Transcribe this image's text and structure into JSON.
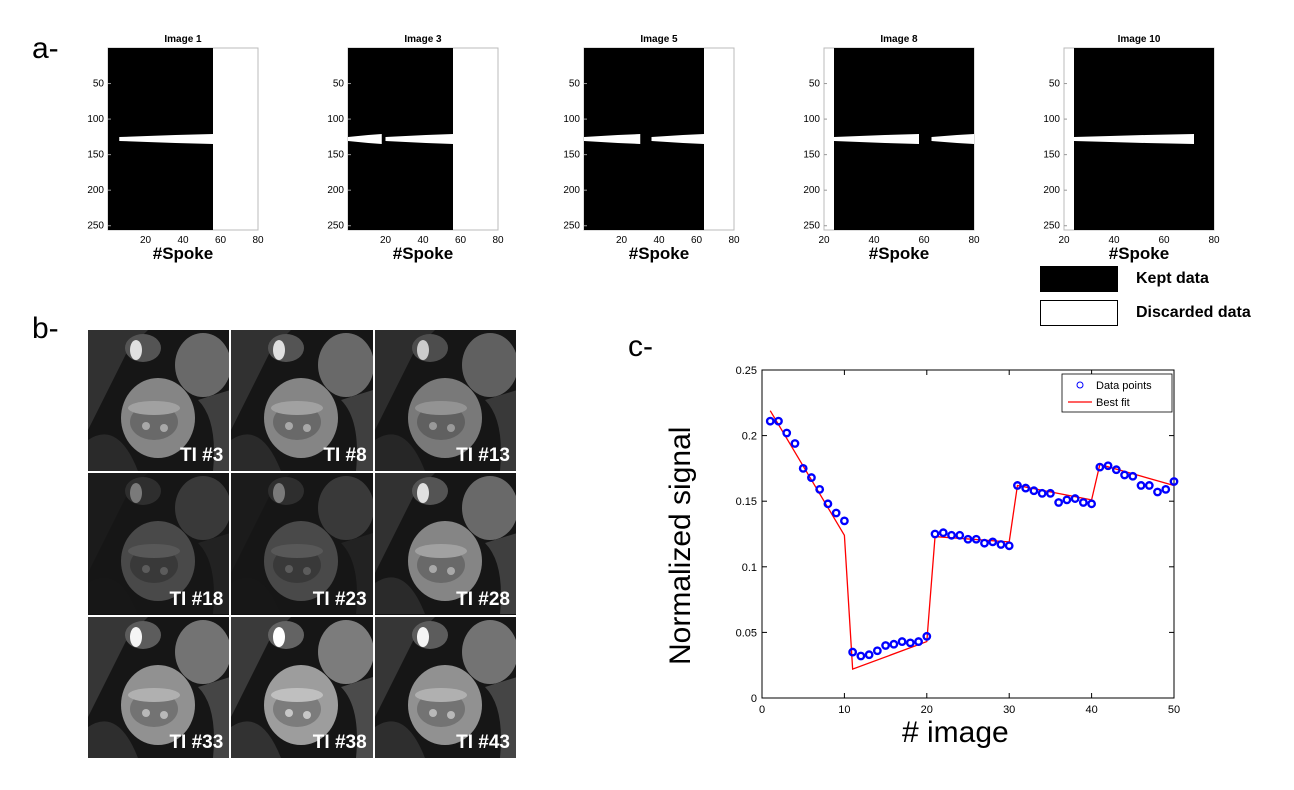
{
  "labels": {
    "a": "a-",
    "b": "b-",
    "c": "c-"
  },
  "mask_plots": [
    {
      "title": "Image 1",
      "x_ticks": [
        20,
        40,
        60,
        80
      ],
      "y_ticks": [
        50,
        100,
        150,
        200,
        250
      ],
      "xlabel": "#Spoke",
      "xmin": 0,
      "xmax": 80,
      "kept_from": 0,
      "kept_to": 56,
      "bar": [
        {
          "from": 6,
          "to": 56
        }
      ]
    },
    {
      "title": "Image 3",
      "x_ticks": [
        20,
        40,
        60,
        80
      ],
      "y_ticks": [
        50,
        100,
        150,
        200,
        250
      ],
      "xlabel": "#Spoke",
      "xmin": 0,
      "xmax": 80,
      "kept_from": 0,
      "kept_to": 56,
      "bar": [
        {
          "from": 0,
          "to": 18
        },
        {
          "from": 20,
          "to": 56
        }
      ]
    },
    {
      "title": "Image 5",
      "x_ticks": [
        20,
        40,
        60,
        80
      ],
      "y_ticks": [
        50,
        100,
        150,
        200,
        250
      ],
      "xlabel": "#Spoke",
      "xmin": 0,
      "xmax": 80,
      "kept_from": 0,
      "kept_to": 64,
      "bar": [
        {
          "from": 0,
          "to": 30
        },
        {
          "from": 36,
          "to": 64
        }
      ]
    },
    {
      "title": "Image 8",
      "x_ticks": [
        20,
        40,
        60,
        80
      ],
      "y_ticks": [
        50,
        100,
        150,
        200,
        250
      ],
      "xlabel": "#Spoke",
      "xmin": 20,
      "xmax": 80,
      "kept_from": 24,
      "kept_to": 80,
      "bar": [
        {
          "from": 24,
          "to": 58
        },
        {
          "from": 63,
          "to": 80
        }
      ]
    },
    {
      "title": "Image 10",
      "x_ticks": [
        20,
        40,
        60,
        80
      ],
      "y_ticks": [
        50,
        100,
        150,
        200,
        250
      ],
      "xlabel": "#Spoke",
      "xmin": 20,
      "xmax": 80,
      "kept_from": 24,
      "kept_to": 80,
      "bar": [
        {
          "from": 24,
          "to": 72
        }
      ]
    }
  ],
  "legend": {
    "kept": "Kept data",
    "discarded": "Discarded data",
    "kept_color": "#000000",
    "discarded_color": "#ffffff"
  },
  "mri_tiles": [
    "TI #3",
    "TI #8",
    "TI #13",
    "TI #18",
    "TI #23",
    "TI #28",
    "TI #33",
    "TI #38",
    "TI #43"
  ],
  "mri_brightness": [
    0.55,
    0.55,
    0.5,
    0.3,
    0.3,
    0.55,
    0.6,
    0.65,
    0.6
  ],
  "chart_data": {
    "type": "scatter",
    "title": "",
    "xlabel": "# image",
    "ylabel": "Normalized signal",
    "xlim": [
      0,
      50
    ],
    "ylim": [
      0,
      0.25
    ],
    "x_ticks": [
      0,
      10,
      20,
      30,
      40,
      50
    ],
    "y_ticks": [
      0,
      0.05,
      0.1,
      0.15,
      0.2,
      0.25
    ],
    "y_tick_labels": [
      "0",
      "0.05",
      "0.1",
      "0.15",
      "0.2",
      "0.25"
    ],
    "legend_position": "top-right",
    "series": [
      {
        "name": "Data points",
        "kind": "marker",
        "color": "#0000ff",
        "x": [
          1,
          2,
          3,
          4,
          5,
          6,
          7,
          8,
          9,
          10,
          11,
          12,
          13,
          14,
          15,
          16,
          17,
          18,
          19,
          20,
          21,
          22,
          23,
          24,
          25,
          26,
          27,
          28,
          29,
          30,
          31,
          32,
          33,
          34,
          35,
          36,
          37,
          38,
          39,
          40,
          41,
          42,
          43,
          44,
          45,
          46,
          47,
          48,
          49,
          50
        ],
        "y": [
          0.211,
          0.211,
          0.202,
          0.194,
          0.175,
          0.168,
          0.159,
          0.148,
          0.141,
          0.135,
          0.035,
          0.032,
          0.033,
          0.036,
          0.04,
          0.041,
          0.043,
          0.042,
          0.043,
          0.047,
          0.125,
          0.126,
          0.124,
          0.124,
          0.121,
          0.121,
          0.118,
          0.119,
          0.117,
          0.116,
          0.162,
          0.16,
          0.158,
          0.156,
          0.156,
          0.149,
          0.151,
          0.152,
          0.149,
          0.148,
          0.176,
          0.177,
          0.174,
          0.17,
          0.169,
          0.162,
          0.162,
          0.157,
          0.159,
          0.165
        ]
      },
      {
        "name": "Best fit",
        "kind": "line",
        "color": "#ff0000",
        "x": [
          1,
          10,
          11,
          20,
          21,
          30,
          31,
          40,
          41,
          50
        ],
        "y": [
          0.219,
          0.124,
          0.022,
          0.043,
          0.123,
          0.119,
          0.162,
          0.151,
          0.178,
          0.162
        ]
      }
    ]
  }
}
